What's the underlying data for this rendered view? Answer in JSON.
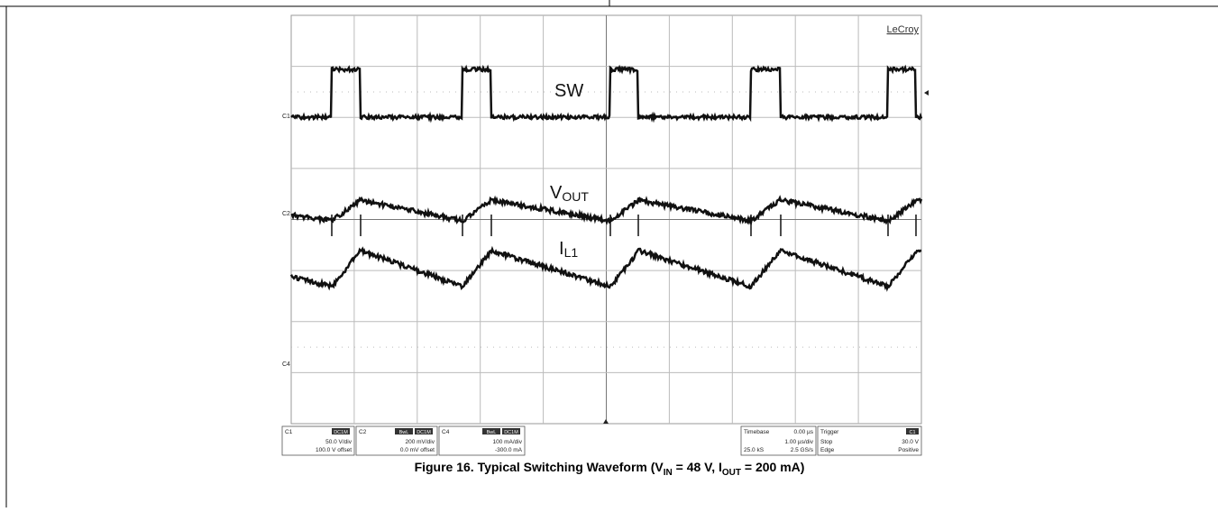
{
  "figure": {
    "brand": "LeCroy",
    "trace_labels": {
      "sw": "SW",
      "vout": {
        "main": "V",
        "sub": "OUT"
      },
      "il1": {
        "main": "I",
        "sub": "L1"
      }
    },
    "channel_markers": [
      "C1",
      "C2",
      "C4"
    ],
    "panels": [
      {
        "name": "C1",
        "badges": [
          "DC1M"
        ],
        "lines": [
          "50.0 V/div",
          "100.0 V offset"
        ]
      },
      {
        "name": "C2",
        "badges": [
          "BwL",
          "DC1M"
        ],
        "lines": [
          "200 mV/div",
          "0.0 mV offset"
        ]
      },
      {
        "name": "C4",
        "badges": [
          "BwL",
          "DC1M"
        ],
        "lines": [
          "100 mA/div",
          "-300.0 mA"
        ]
      }
    ],
    "timebase": {
      "title": "Timebase",
      "delay": "0.00 µs",
      "scale": "1.00 µs/div",
      "samples": "25.0 kS",
      "rate": "2.5 GS/s"
    },
    "trigger": {
      "title": "Trigger",
      "source": "C1",
      "mode": "Stop",
      "level": "30.0 V",
      "type": "Edge",
      "slope": "Positive"
    },
    "caption": {
      "prefix": "Figure 16. Typical Switching Waveform (V",
      "sub1": "IN",
      "mid": " = 48 V, I",
      "sub2": "OUT",
      "suffix": " = 200 mA)"
    }
  }
}
